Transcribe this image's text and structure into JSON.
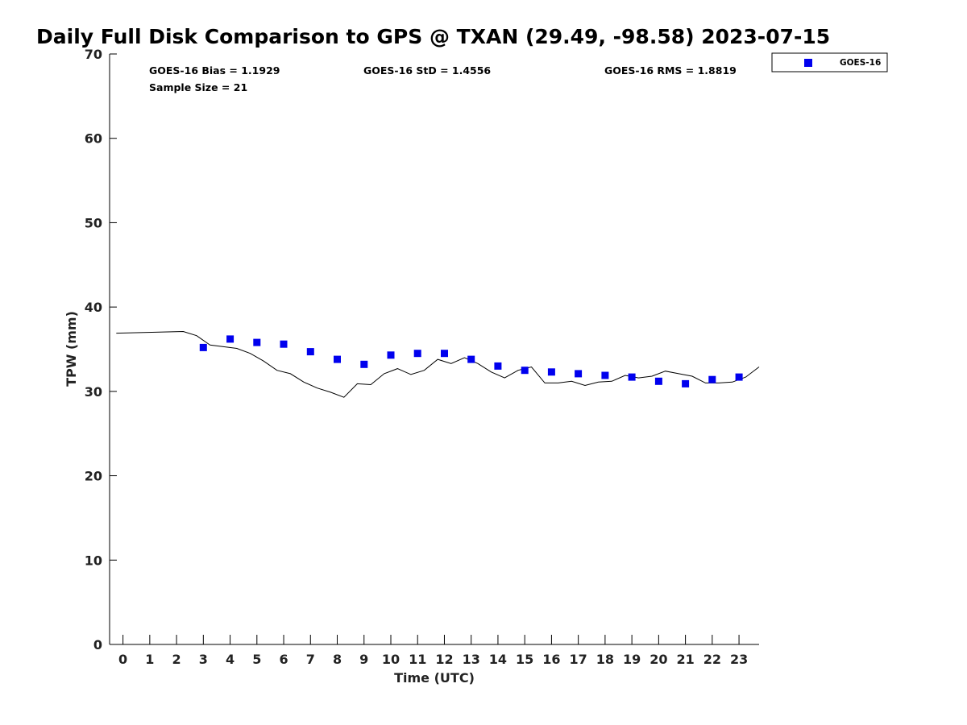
{
  "chart_data": {
    "type": "scatter",
    "title": "Daily Full Disk Comparison to GPS @ TXAN (29.49, -98.58) 2023-07-15",
    "xlabel": "Time (UTC)",
    "ylabel": "TPW (mm)",
    "xlim": [
      -0.5,
      23.75
    ],
    "ylim": [
      0,
      70
    ],
    "xticks": [
      "0",
      "1",
      "2",
      "3",
      "4",
      "5",
      "6",
      "7",
      "8",
      "9",
      "10",
      "11",
      "12",
      "13",
      "14",
      "15",
      "16",
      "17",
      "18",
      "19",
      "20",
      "21",
      "22",
      "23"
    ],
    "yticks": [
      "0",
      "10",
      "20",
      "30",
      "40",
      "50",
      "60",
      "70"
    ],
    "grid": false,
    "legend": {
      "placement": "top-right, outside plot",
      "entries": [
        "GOES-16"
      ]
    },
    "stats": {
      "bias": "GOES-16 Bias = 1.1929",
      "std": "GOES-16 StD = 1.4556",
      "rms": "GOES-16 RMS = 1.8819",
      "sample": "Sample Size = 21"
    },
    "series": [
      {
        "name": "GOES-16",
        "kind": "scatter",
        "marker": "square",
        "color": "#0000ee",
        "x": [
          3,
          4,
          5,
          6,
          7,
          8,
          9,
          10,
          11,
          12,
          13,
          14,
          15,
          16,
          17,
          18,
          19,
          20,
          21,
          22,
          23
        ],
        "y": [
          35.2,
          36.2,
          35.8,
          35.6,
          34.7,
          33.8,
          33.2,
          34.3,
          34.5,
          34.5,
          33.8,
          33.0,
          32.5,
          32.3,
          32.1,
          31.9,
          31.7,
          31.2,
          30.9,
          31.4,
          31.7
        ]
      },
      {
        "kind": "line",
        "color": "#000000",
        "x": [
          -0.25,
          2.25,
          2.75,
          3.25,
          3.75,
          4.25,
          4.75,
          5.25,
          5.75,
          6.25,
          6.75,
          7.25,
          7.75,
          8.25,
          8.75,
          9.25,
          9.75,
          10.25,
          10.75,
          11.25,
          11.75,
          12.25,
          12.75,
          13.25,
          13.75,
          14.25,
          14.75,
          15.25,
          15.75,
          16.25,
          16.75,
          17.25,
          17.75,
          18.25,
          18.75,
          19.25,
          19.75,
          20.25,
          20.75,
          21.25,
          21.75,
          22.25,
          22.75,
          23.25,
          23.75
        ],
        "y": [
          36.9,
          37.1,
          36.6,
          35.5,
          35.3,
          35.1,
          34.5,
          33.6,
          32.5,
          32.1,
          31.1,
          30.4,
          29.9,
          29.3,
          30.9,
          30.8,
          32.1,
          32.7,
          32.0,
          32.5,
          33.8,
          33.3,
          34.0,
          33.3,
          32.3,
          31.6,
          32.5,
          32.9,
          31.0,
          31.0,
          31.2,
          30.7,
          31.1,
          31.2,
          31.9,
          31.6,
          31.8,
          32.4,
          32.1,
          31.8,
          31.0,
          31.0,
          31.1,
          31.7,
          32.9
        ]
      }
    ]
  }
}
